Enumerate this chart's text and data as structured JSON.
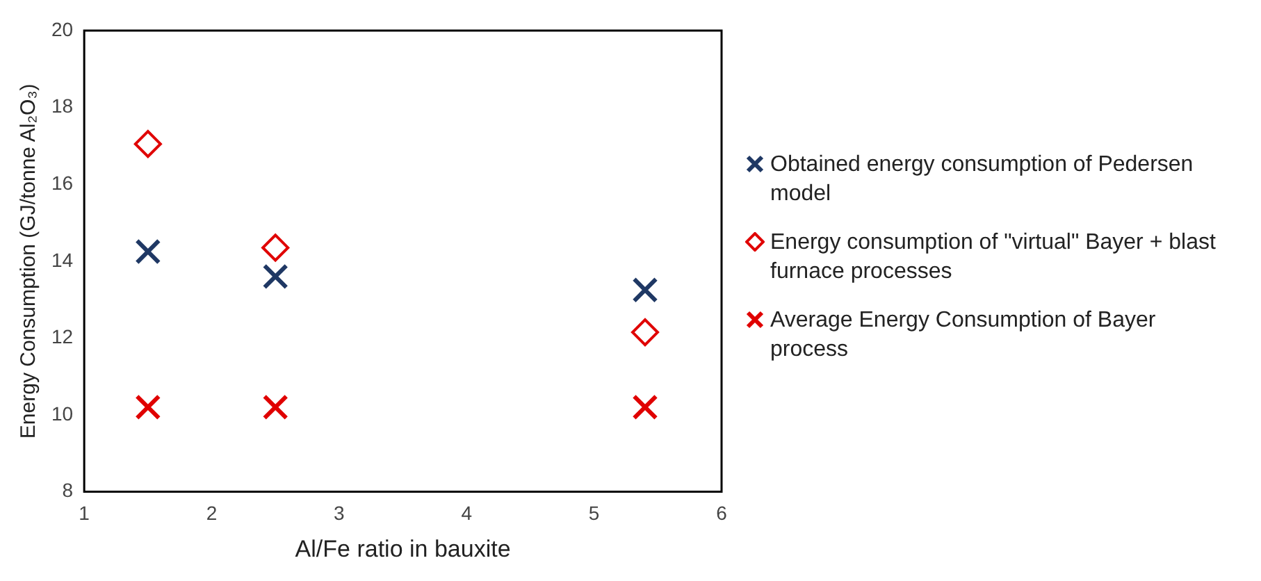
{
  "chart_data": {
    "type": "scatter",
    "xlabel": "Al/Fe ratio in bauxite",
    "ylabel": "Energy Consumption (GJ/tonne Al₂O₃)",
    "x": [
      1.5,
      2.5,
      5.4
    ],
    "series": [
      {
        "name": "Obtained energy consumption of Pedersen model",
        "color": "#1f3864",
        "marker": "cross",
        "values": [
          14.25,
          13.6,
          13.25
        ]
      },
      {
        "name": "Energy consumption of \"virtual\" Bayer + blast furnace processes",
        "color": "#e00000",
        "marker": "diamond",
        "values": [
          17.05,
          14.35,
          12.15
        ]
      },
      {
        "name": "Average Energy Consumption of Bayer process",
        "color": "#e00000",
        "marker": "cross",
        "values": [
          10.2,
          10.2,
          10.2
        ]
      }
    ],
    "xlim": [
      1,
      6
    ],
    "xticks": [
      1,
      2,
      3,
      4,
      5,
      6
    ],
    "ylim": [
      8,
      20
    ],
    "yticks": [
      8,
      10,
      12,
      14,
      16,
      18,
      20
    ],
    "grid": false,
    "legend": "right"
  }
}
